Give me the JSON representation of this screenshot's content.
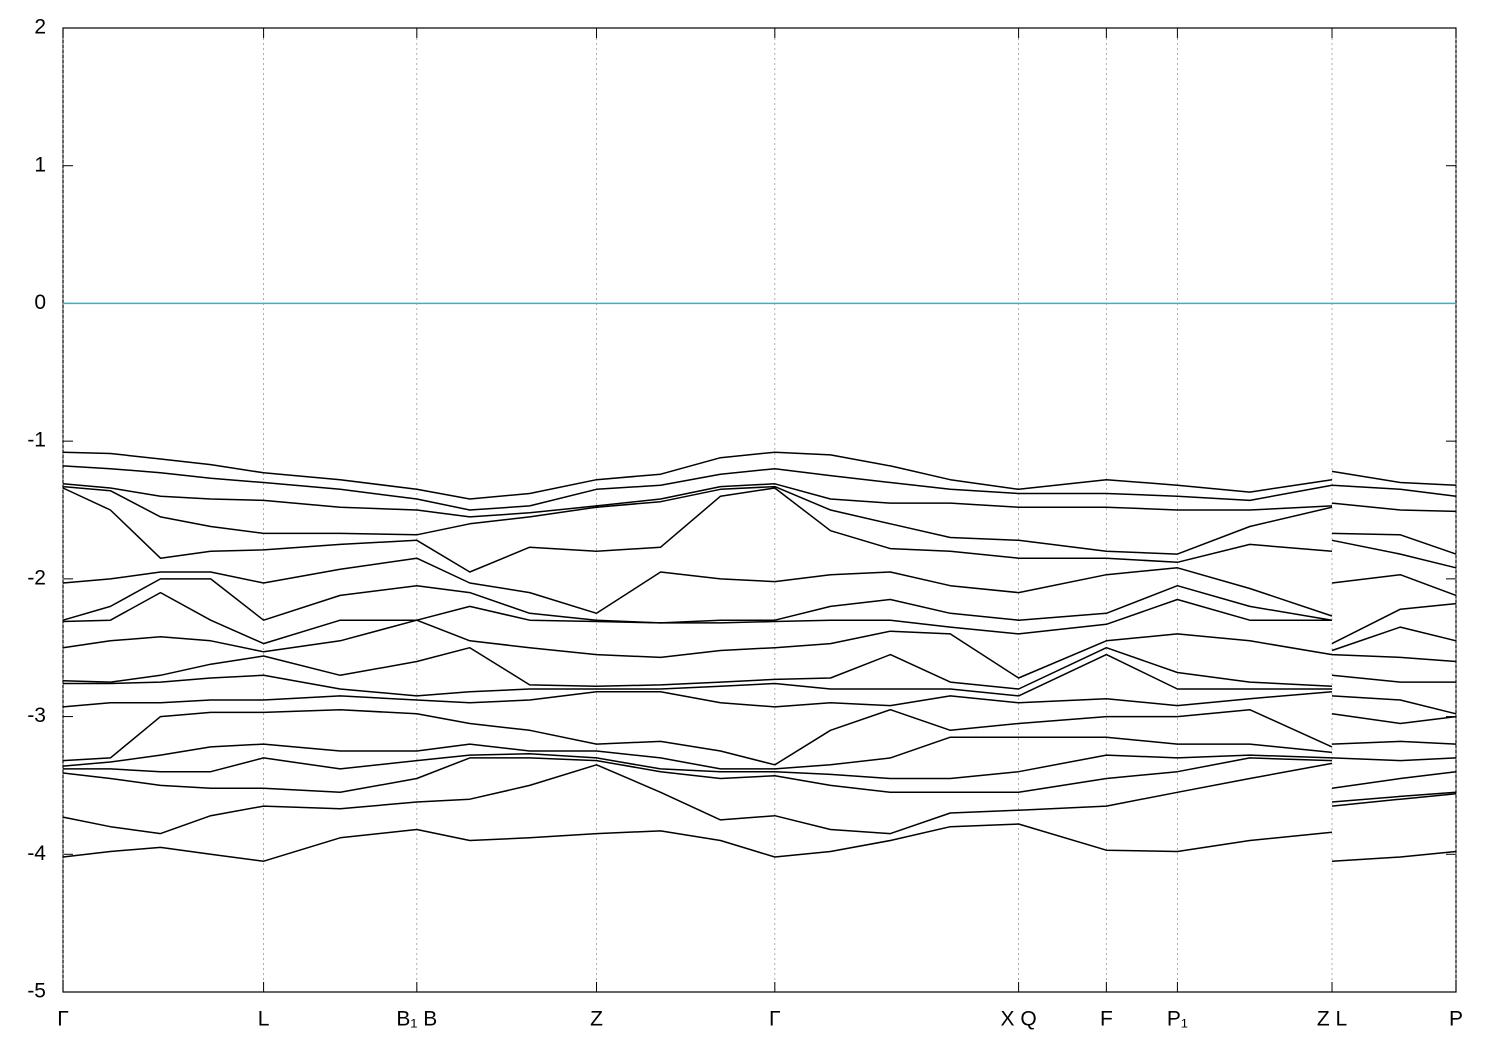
{
  "chart_data": {
    "type": "line",
    "x": [
      0,
      0.034,
      0.07,
      0.106,
      0.144,
      0.199,
      0.254,
      0.292,
      0.335,
      0.383,
      0.429,
      0.472,
      0.511,
      0.551,
      0.594,
      0.637,
      0.686,
      0.749,
      0.8,
      0.852,
      0.911,
      0.911,
      0.911,
      0.96,
      1
    ],
    "color": "#000000",
    "series": [
      {
        "values": [
          -1.08,
          -1.09,
          -1.13,
          -1.17,
          -1.23,
          -1.28,
          -1.35,
          -1.42,
          -1.38,
          -1.28,
          -1.24,
          -1.12,
          -1.08,
          -1.1,
          -1.18,
          -1.28,
          -1.35,
          -1.28,
          -1.32,
          -1.37,
          -1.28,
          null,
          -1.22,
          -1.3,
          -1.32
        ]
      },
      {
        "values": [
          -1.18,
          -1.2,
          -1.23,
          -1.27,
          -1.3,
          -1.35,
          -1.42,
          -1.5,
          -1.47,
          -1.35,
          -1.32,
          -1.24,
          -1.2,
          -1.25,
          -1.3,
          -1.35,
          -1.38,
          -1.38,
          -1.4,
          -1.43,
          -1.32,
          null,
          -1.32,
          -1.35,
          -1.4
        ]
      },
      {
        "values": [
          -1.31,
          -1.34,
          -1.4,
          -1.42,
          -1.43,
          -1.48,
          -1.5,
          -1.55,
          -1.52,
          -1.47,
          -1.42,
          -1.33,
          -1.31,
          -1.42,
          -1.45,
          -1.45,
          -1.48,
          -1.48,
          -1.5,
          -1.5,
          -1.47,
          null,
          -1.45,
          -1.5,
          -1.51
        ]
      },
      {
        "values": [
          -1.33,
          -1.36,
          -1.55,
          -1.62,
          -1.67,
          -1.67,
          -1.68,
          -1.6,
          -1.55,
          -1.48,
          -1.44,
          -1.35,
          -1.33,
          -1.5,
          -1.6,
          -1.7,
          -1.72,
          -1.8,
          -1.82,
          -1.62,
          -1.48,
          null,
          -1.67,
          -1.68,
          -1.82
        ]
      },
      {
        "values": [
          -1.34,
          -1.5,
          -1.85,
          -1.8,
          -1.79,
          -1.75,
          -1.72,
          -1.95,
          -1.77,
          -1.8,
          -1.77,
          -1.4,
          -1.34,
          -1.65,
          -1.78,
          -1.8,
          -1.85,
          -1.85,
          -1.88,
          -1.75,
          -1.8,
          null,
          -1.72,
          -1.82,
          -1.92
        ]
      },
      {
        "values": [
          -2.03,
          -2.0,
          -1.95,
          -1.95,
          -2.03,
          -1.93,
          -1.85,
          -2.03,
          -2.1,
          -2.25,
          -1.95,
          -2.0,
          -2.02,
          -1.97,
          -1.95,
          -2.05,
          -2.1,
          -1.97,
          -1.92,
          -2.07,
          -2.27,
          null,
          -2.03,
          -1.97,
          -2.12
        ]
      },
      {
        "values": [
          -2.3,
          -2.2,
          -2.0,
          -2.0,
          -2.3,
          -2.12,
          -2.05,
          -2.1,
          -2.25,
          -2.3,
          -2.32,
          -2.3,
          -2.3,
          -2.2,
          -2.15,
          -2.25,
          -2.3,
          -2.25,
          -2.05,
          -2.2,
          -2.3,
          null,
          -2.47,
          -2.22,
          -2.18
        ]
      },
      {
        "values": [
          -2.31,
          -2.3,
          -2.1,
          -2.3,
          -2.47,
          -2.3,
          -2.3,
          -2.2,
          -2.3,
          -2.31,
          -2.32,
          -2.32,
          -2.31,
          -2.3,
          -2.3,
          -2.35,
          -2.4,
          -2.33,
          -2.15,
          -2.3,
          -2.3,
          null,
          -2.52,
          -2.35,
          -2.45
        ]
      },
      {
        "values": [
          -2.5,
          -2.45,
          -2.42,
          -2.45,
          -2.53,
          -2.45,
          -2.3,
          -2.45,
          -2.5,
          -2.55,
          -2.57,
          -2.52,
          -2.5,
          -2.47,
          -2.38,
          -2.4,
          -2.72,
          -2.45,
          -2.4,
          -2.45,
          -2.55,
          null,
          -2.55,
          -2.57,
          -2.6
        ]
      },
      {
        "values": [
          -2.74,
          -2.75,
          -2.7,
          -2.62,
          -2.56,
          -2.7,
          -2.6,
          -2.5,
          -2.77,
          -2.78,
          -2.77,
          -2.75,
          -2.73,
          -2.72,
          -2.55,
          -2.75,
          -2.8,
          -2.5,
          -2.68,
          -2.75,
          -2.78,
          null,
          -2.7,
          -2.75,
          -2.75
        ]
      },
      {
        "values": [
          -2.76,
          -2.76,
          -2.75,
          -2.72,
          -2.7,
          -2.8,
          -2.85,
          -2.82,
          -2.8,
          -2.8,
          -2.8,
          -2.78,
          -2.76,
          -2.8,
          -2.8,
          -2.8,
          -2.85,
          -2.55,
          -2.8,
          -2.8,
          -2.8,
          null,
          -2.85,
          -2.88,
          -2.98
        ]
      },
      {
        "values": [
          -2.93,
          -2.9,
          -2.9,
          -2.88,
          -2.88,
          -2.85,
          -2.88,
          -2.9,
          -2.88,
          -2.82,
          -2.82,
          -2.9,
          -2.93,
          -2.9,
          -2.92,
          -2.85,
          -2.9,
          -2.87,
          -2.92,
          -2.87,
          -2.82,
          null,
          -2.98,
          -3.05,
          -3.0
        ]
      },
      {
        "values": [
          -3.32,
          -3.3,
          -3.0,
          -2.97,
          -2.97,
          -2.95,
          -2.98,
          -3.05,
          -3.1,
          -3.2,
          -3.18,
          -3.25,
          -3.35,
          -3.1,
          -2.95,
          -3.1,
          -3.05,
          -3.0,
          -3.0,
          -2.95,
          -3.22,
          null,
          -3.2,
          -3.18,
          -3.2
        ]
      },
      {
        "values": [
          -3.36,
          -3.33,
          -3.28,
          -3.22,
          -3.2,
          -3.25,
          -3.25,
          -3.2,
          -3.25,
          -3.25,
          -3.3,
          -3.38,
          -3.38,
          -3.35,
          -3.3,
          -3.15,
          -3.15,
          -3.15,
          -3.2,
          -3.2,
          -3.26,
          null,
          -3.3,
          -3.32,
          -3.3
        ]
      },
      {
        "values": [
          -3.38,
          -3.38,
          -3.4,
          -3.4,
          -3.3,
          -3.38,
          -3.32,
          -3.28,
          -3.27,
          -3.3,
          -3.38,
          -3.4,
          -3.4,
          -3.42,
          -3.45,
          -3.45,
          -3.4,
          -3.28,
          -3.3,
          -3.28,
          -3.3,
          null,
          -3.52,
          -3.45,
          -3.4
        ]
      },
      {
        "values": [
          -3.41,
          -3.45,
          -3.5,
          -3.52,
          -3.52,
          -3.55,
          -3.45,
          -3.3,
          -3.3,
          -3.32,
          -3.4,
          -3.45,
          -3.43,
          -3.5,
          -3.55,
          -3.55,
          -3.55,
          -3.45,
          -3.4,
          -3.3,
          -3.32,
          null,
          -3.62,
          -3.58,
          -3.55
        ]
      },
      {
        "values": [
          -3.73,
          -3.8,
          -3.85,
          -3.72,
          -3.65,
          -3.67,
          -3.62,
          -3.6,
          -3.5,
          -3.35,
          -3.55,
          -3.75,
          -3.72,
          -3.82,
          -3.85,
          -3.7,
          -3.68,
          -3.65,
          -3.55,
          -3.45,
          -3.34,
          null,
          -3.65,
          -3.6,
          -3.56
        ]
      },
      {
        "values": [
          -4.02,
          -3.98,
          -3.95,
          -4.0,
          -4.05,
          -3.88,
          -3.82,
          -3.9,
          -3.88,
          -3.85,
          -3.83,
          -3.9,
          -4.02,
          -3.98,
          -3.9,
          -3.8,
          -3.78,
          -3.97,
          -3.98,
          -3.9,
          -3.84,
          null,
          -4.05,
          -4.02,
          -3.98
        ]
      }
    ],
    "hline": {
      "value": 0,
      "color": "#4aa8c8"
    },
    "xlim": [
      0,
      1
    ],
    "xticks": [
      {
        "value": 0,
        "label": "Γ"
      },
      {
        "value": 0.144,
        "label": "L"
      },
      {
        "value": 0.254,
        "label": "B₁ B"
      },
      {
        "value": 0.383,
        "label": "Z"
      },
      {
        "value": 0.511,
        "label": "Γ"
      },
      {
        "value": 0.686,
        "label": "X Q"
      },
      {
        "value": 0.749,
        "label": "F"
      },
      {
        "value": 0.8,
        "label": "P₁"
      },
      {
        "value": 0.911,
        "label": "Z L"
      },
      {
        "value": 1,
        "label": "P"
      }
    ],
    "ylim": [
      -5,
      2
    ],
    "yticks": [
      -5,
      -4,
      -3,
      -2,
      -1,
      0,
      1,
      2
    ],
    "xgrid": true
  }
}
